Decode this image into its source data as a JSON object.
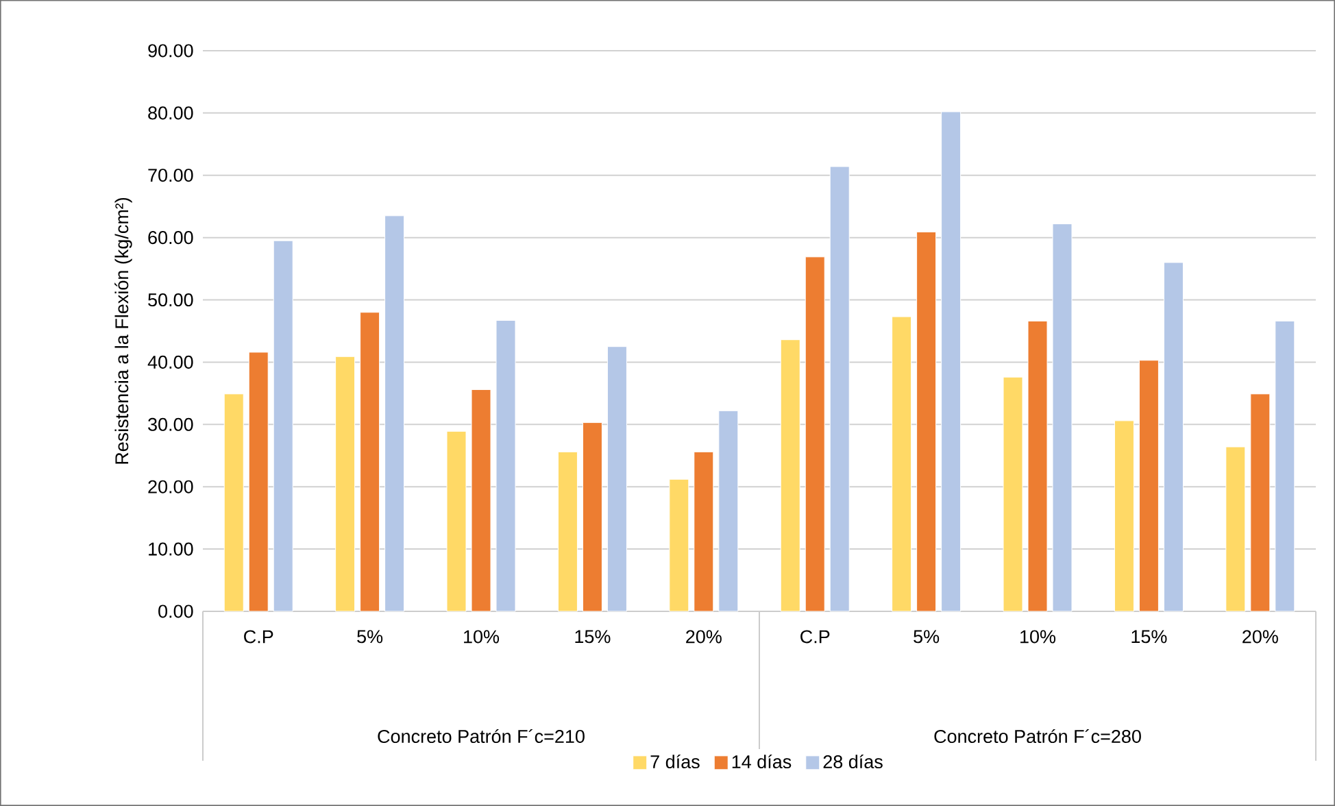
{
  "chart_data": {
    "type": "bar",
    "ylabel": "Resistencia a la Flexión (kg/cm²)",
    "categories": [
      "C.P",
      "5%",
      "10%",
      "15%",
      "20%",
      "C.P",
      "5%",
      "10%",
      "15%",
      "20%"
    ],
    "series": [
      {
        "name": "7 días",
        "color": "#ffd966",
        "values": [
          34.9,
          40.9,
          28.9,
          25.6,
          21.2,
          43.6,
          47.3,
          37.6,
          30.6,
          26.4
        ]
      },
      {
        "name": "14 días",
        "color": "#ed7d31",
        "values": [
          41.6,
          48.0,
          35.6,
          30.3,
          25.6,
          56.9,
          60.9,
          46.6,
          40.3,
          34.9
        ]
      },
      {
        "name": "28 días",
        "color": "#b4c7e7",
        "values": [
          59.5,
          63.5,
          46.7,
          42.5,
          32.2,
          71.4,
          80.2,
          62.2,
          56.0,
          46.6
        ]
      }
    ],
    "ylim": [
      0,
      90
    ],
    "yticks": [
      {
        "value": 0,
        "label": "0.00"
      },
      {
        "value": 10,
        "label": "10.00"
      },
      {
        "value": 20,
        "label": "20.00"
      },
      {
        "value": 30,
        "label": "30.00"
      },
      {
        "value": 40,
        "label": "40.00"
      },
      {
        "value": 50,
        "label": "50.00"
      },
      {
        "value": 60,
        "label": "60.00"
      },
      {
        "value": 70,
        "label": "70.00"
      },
      {
        "value": 80,
        "label": "80.00"
      },
      {
        "value": 90,
        "label": "90.00"
      }
    ],
    "annotations": [
      "Concreto Patrón F´c=210",
      "Concreto Patrón F´c=280"
    ],
    "grid": "y",
    "legend": "bottom"
  }
}
